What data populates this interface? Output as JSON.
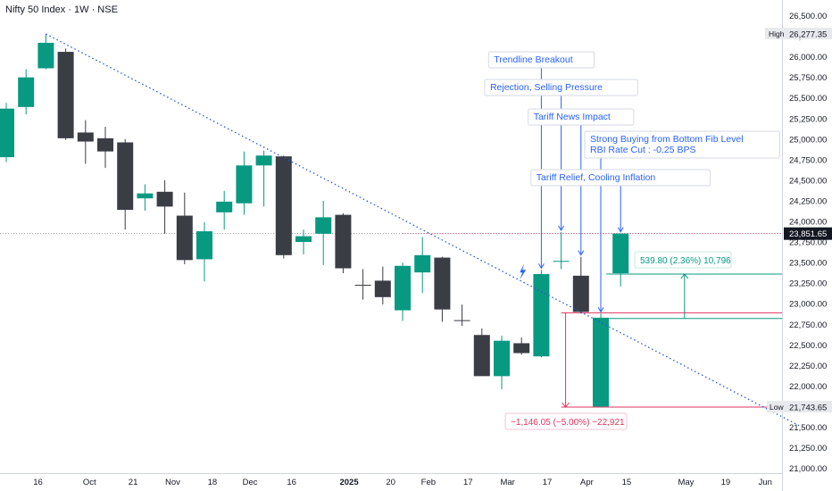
{
  "header": {
    "title": "Nifty 50 Index · 1W · NSE"
  },
  "colors": {
    "up": "#089981",
    "down": "#3b3d45",
    "trend": "#2a56d6",
    "note": "#2962ff",
    "loss": "#e0355f",
    "gain": "#089981",
    "axis_bg": "#e8e9ec"
  },
  "chart_data": {
    "type": "candlestick",
    "title": "Nifty 50 Index · 1W · NSE",
    "ylim": [
      21000,
      26750
    ],
    "y_ticks": [
      26500,
      26250,
      26000,
      25750,
      25500,
      25250,
      25000,
      24750,
      24500,
      24250,
      24000,
      23750,
      23500,
      23250,
      23000,
      22750,
      22500,
      22250,
      22000,
      21750,
      21500,
      21250,
      21000
    ],
    "y_tick_labels": [
      "26,500.00",
      "26,250.00",
      "26,000.00",
      "25,750.00",
      "25,500.00",
      "25,250.00",
      "25,000.00",
      "24,750.00",
      "24,500.00",
      "24,250.00",
      "24,000.00",
      "23,750.00",
      "23,500.00",
      "23,250.00",
      "23,000.00",
      "22,750.00",
      "22,500.00",
      "22,250.00",
      "22,000.00",
      "21,750.00",
      "21,500.00",
      "21,250.00",
      "21,000.00"
    ],
    "x_labels": [
      {
        "label": "16",
        "pos": 1.6
      },
      {
        "label": "Oct",
        "pos": 4.2
      },
      {
        "label": "21",
        "pos": 6.4
      },
      {
        "label": "Nov",
        "pos": 8.4
      },
      {
        "label": "18",
        "pos": 10.4
      },
      {
        "label": "Dec",
        "pos": 12.3
      },
      {
        "label": "16",
        "pos": 14.4
      },
      {
        "label": "2025",
        "pos": 17.3,
        "bold": true
      },
      {
        "label": "20",
        "pos": 19.4
      },
      {
        "label": "Feb",
        "pos": 21.3
      },
      {
        "label": "17",
        "pos": 23.3
      },
      {
        "label": "Mar",
        "pos": 25.3
      },
      {
        "label": "17",
        "pos": 27.3
      },
      {
        "label": "Apr",
        "pos": 29.3
      },
      {
        "label": "15",
        "pos": 31.3
      },
      {
        "label": "May",
        "pos": 34.3
      },
      {
        "label": "19",
        "pos": 36.3
      },
      {
        "label": "Jun",
        "pos": 38.3
      }
    ],
    "candles": [
      {
        "i": 0,
        "o": 24780,
        "h": 25440,
        "l": 24720,
        "c": 25370
      },
      {
        "i": 1,
        "o": 25390,
        "h": 25850,
        "l": 25300,
        "c": 25750
      },
      {
        "i": 2,
        "o": 25860,
        "h": 26277,
        "l": 25850,
        "c": 26170
      },
      {
        "i": 3,
        "o": 26060,
        "h": 26100,
        "l": 24990,
        "c": 25010
      },
      {
        "i": 4,
        "o": 25080,
        "h": 25230,
        "l": 24700,
        "c": 24970
      },
      {
        "i": 5,
        "o": 25010,
        "h": 25150,
        "l": 24650,
        "c": 24850
      },
      {
        "i": 6,
        "o": 24960,
        "h": 25000,
        "l": 23900,
        "c": 24140
      },
      {
        "i": 7,
        "o": 24280,
        "h": 24450,
        "l": 24130,
        "c": 24340
      },
      {
        "i": 8,
        "o": 24360,
        "h": 24500,
        "l": 23850,
        "c": 24180
      },
      {
        "i": 9,
        "o": 24070,
        "h": 24350,
        "l": 23480,
        "c": 23530
      },
      {
        "i": 10,
        "o": 23540,
        "h": 23990,
        "l": 23270,
        "c": 23880
      },
      {
        "i": 11,
        "o": 24110,
        "h": 24370,
        "l": 23900,
        "c": 24240
      },
      {
        "i": 12,
        "o": 24220,
        "h": 24850,
        "l": 24080,
        "c": 24680
      },
      {
        "i": 13,
        "o": 24680,
        "h": 24860,
        "l": 24180,
        "c": 24800
      },
      {
        "i": 14,
        "o": 24790,
        "h": 24800,
        "l": 23550,
        "c": 23590
      },
      {
        "i": 15,
        "o": 23750,
        "h": 23900,
        "l": 23600,
        "c": 23820
      },
      {
        "i": 16,
        "o": 23850,
        "h": 24250,
        "l": 23470,
        "c": 24050
      },
      {
        "i": 17,
        "o": 24080,
        "h": 24100,
        "l": 23370,
        "c": 23430
      },
      {
        "i": 18,
        "o": 23230,
        "h": 23420,
        "l": 23050,
        "c": 23220
      },
      {
        "i": 19,
        "o": 23280,
        "h": 23450,
        "l": 22990,
        "c": 23080
      },
      {
        "i": 20,
        "o": 22920,
        "h": 23500,
        "l": 22790,
        "c": 23460
      },
      {
        "i": 21,
        "o": 23380,
        "h": 23810,
        "l": 23130,
        "c": 23590
      },
      {
        "i": 22,
        "o": 23560,
        "h": 23570,
        "l": 22780,
        "c": 22930
      },
      {
        "i": 23,
        "o": 22800,
        "h": 22990,
        "l": 22730,
        "c": 22790
      },
      {
        "i": 24,
        "o": 22620,
        "h": 22700,
        "l": 22130,
        "c": 22120
      },
      {
        "i": 25,
        "o": 22120,
        "h": 22610,
        "l": 21960,
        "c": 22550
      },
      {
        "i": 26,
        "o": 22520,
        "h": 22590,
        "l": 22380,
        "c": 22400
      },
      {
        "i": 27,
        "o": 22360,
        "h": 23410,
        "l": 22350,
        "c": 23360
      },
      {
        "i": 28,
        "o": 23520,
        "h": 23870,
        "l": 23420,
        "c": 23520
      },
      {
        "i": 29,
        "o": 23340,
        "h": 23570,
        "l": 22880,
        "c": 22900
      },
      {
        "i": 30,
        "o": 21750,
        "h": 22880,
        "l": 21744,
        "c": 22830
      },
      {
        "i": 31,
        "o": 23370,
        "h": 23852,
        "l": 23210,
        "c": 23852
      }
    ],
    "trendline": {
      "from": {
        "i": 2,
        "v": 26277
      },
      "to": {
        "i": 40,
        "v": 21520
      }
    },
    "levels": {
      "high": 26277.35,
      "high_label": "26,277.35",
      "last": 23851.65,
      "last_label": "23,851.65",
      "low": 21743.65,
      "low_label": "21,743.65"
    },
    "axis_tags": {
      "high": "High",
      "low": "Low"
    },
    "annotations": [
      {
        "text": "Trendline Breakout",
        "anchor_i": 27
      },
      {
        "text": "Rejection, Selling Pressure",
        "anchor_i": 28
      },
      {
        "text": "Tariff News Impact",
        "anchor_i": 29
      },
      {
        "text": "Strong Buying from Bottom Fib Level",
        "text2": "RBI Rate Cut : -0.25 BPS",
        "anchor_i": 30
      },
      {
        "text": "Tariff Relief, Cooling Inflation",
        "anchor_i": 31
      }
    ],
    "measure_gain": {
      "label": "539.80 (2.36%) 10,796",
      "from": 22820,
      "to": 23360
    },
    "measure_loss": {
      "label": "−1,146.05 (−5.00%) −22,921",
      "from": 22890,
      "to": 21744
    }
  }
}
